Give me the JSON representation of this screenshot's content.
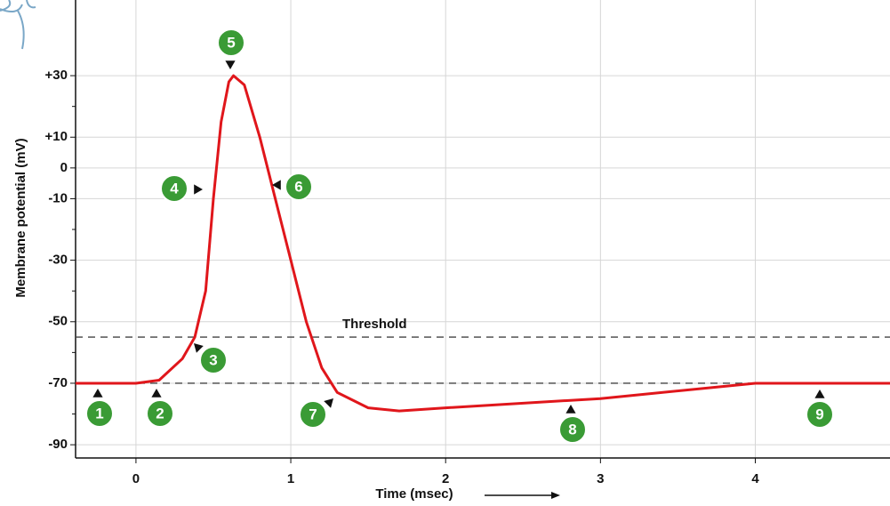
{
  "chart_data": {
    "type": "line",
    "y_label": "Membrane potential (mV)",
    "x_label": "Time (msec)",
    "x": [
      -0.39,
      0,
      0.15,
      0.3,
      0.38,
      0.45,
      0.5,
      0.55,
      0.6,
      0.63,
      0.7,
      0.8,
      0.9,
      1.0,
      1.1,
      1.2,
      1.3,
      1.5,
      1.7,
      2,
      3,
      4,
      4.87
    ],
    "series": [
      {
        "color": "#e0161b",
        "values": [
          -70,
          -70,
          -69,
          -62,
          -55,
          -40,
          -10,
          15,
          28,
          30,
          27,
          10,
          -10,
          -30,
          -50,
          -65,
          -73,
          -78,
          -79,
          -78,
          -75,
          -70,
          -70
        ]
      }
    ],
    "xlim": [
      -0.39,
      4.87
    ],
    "ylim": [
      -94.3,
      54.6
    ],
    "xticks": [
      0,
      1,
      2,
      3,
      4
    ],
    "yticks": [
      {
        "value": 30,
        "label": "+30"
      },
      {
        "value": 10,
        "label": "+10"
      },
      0,
      -10,
      -30,
      -50,
      -70,
      -90
    ],
    "minor_yticks": [
      20,
      -20,
      -40,
      -60,
      -80
    ],
    "grid": true,
    "reference_lines": [
      {
        "value": -55,
        "label": "Threshold"
      },
      {
        "value": -70
      }
    ],
    "annotations": [
      "1",
      "2",
      "3",
      "4",
      "5",
      "6",
      "7",
      "8",
      "9"
    ]
  }
}
